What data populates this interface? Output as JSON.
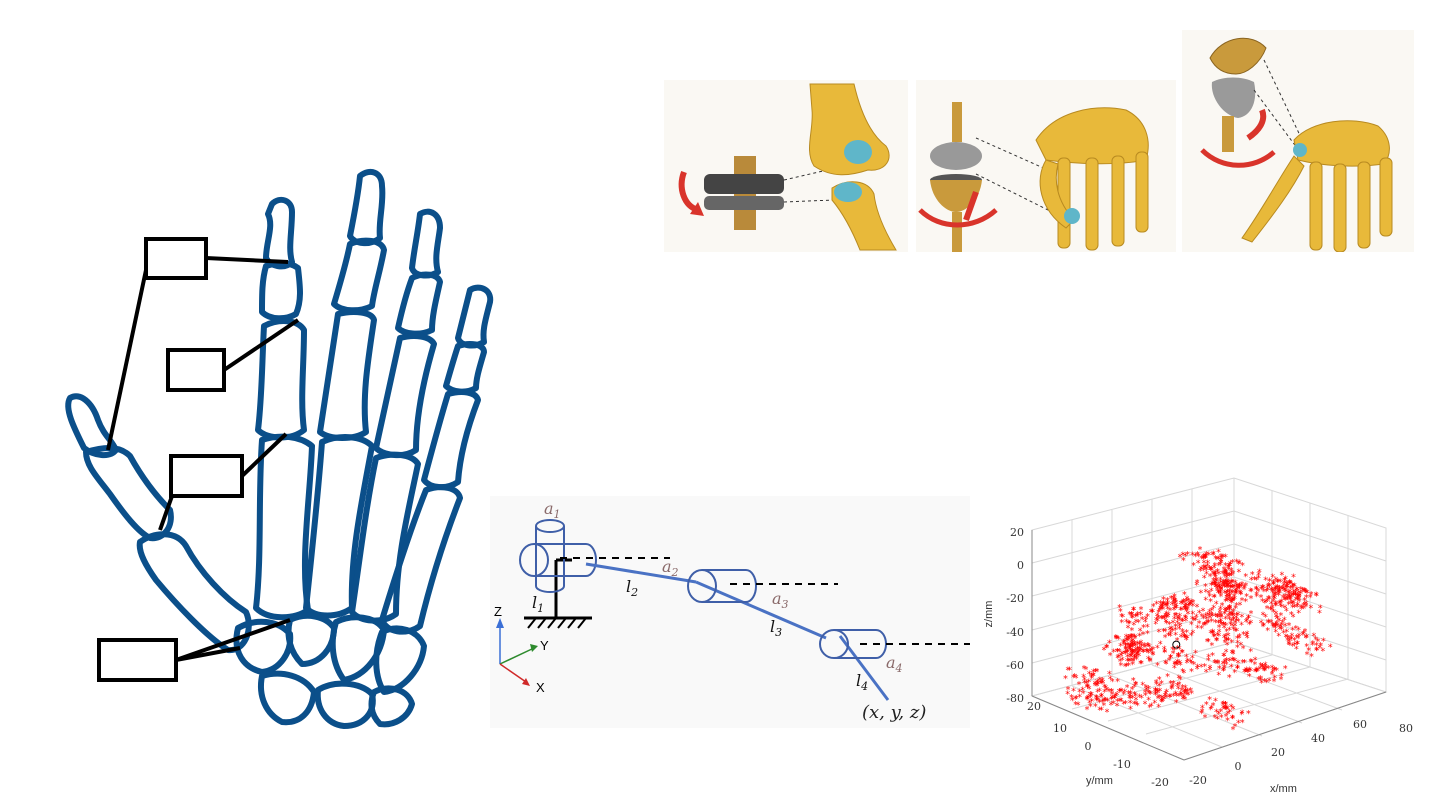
{
  "kinematics": {
    "a1": "a",
    "a1_sub": "1",
    "a2": "a",
    "a2_sub": "2",
    "a3": "a",
    "a3_sub": "3",
    "a4": "a",
    "a4_sub": "4",
    "l1": "l",
    "l1_sub": "1",
    "l2": "l",
    "l2_sub": "2",
    "l3": "l",
    "l3_sub": "3",
    "l4": "l",
    "l4_sub": "4",
    "end_point": "(x, y, z)",
    "axis_z": "Z",
    "axis_y": "Y",
    "axis_x": "X"
  },
  "plot": {
    "zlabel": "z/mm",
    "xlabel": "x/mm",
    "ylabel": "y/mm",
    "z_ticks": [
      "20",
      "0",
      "-20",
      "-40",
      "-60",
      "-80"
    ],
    "x_ticks": [
      "-20",
      "0",
      "20",
      "40",
      "60",
      "80"
    ],
    "y_ticks": [
      "20",
      "10",
      "0",
      "-10",
      "-20"
    ]
  },
  "colors": {
    "bone_outline": "#0b4f8a",
    "link_blue": "#4a72c4",
    "scatter_red": "#ff0000",
    "bone_fill": "#e8b93a",
    "joint_blue": "#5fb6c9",
    "arrow_red": "#d9342b"
  },
  "chart_data": {
    "type": "scatter",
    "title": "",
    "xlabel": "x/mm",
    "ylabel": "y/mm",
    "zlabel": "z/mm",
    "xlim": [
      -20,
      80
    ],
    "ylim": [
      -20,
      20
    ],
    "zlim": [
      -80,
      20
    ],
    "grid": true,
    "marker": "*",
    "series": [
      {
        "points_xyz": [
          [
            -5,
            5,
            -70
          ],
          [
            0,
            0,
            -65
          ],
          [
            5,
            -5,
            -60
          ],
          [
            10,
            10,
            -55
          ],
          [
            15,
            0,
            -50
          ],
          [
            20,
            -10,
            -45
          ],
          [
            25,
            5,
            -40
          ],
          [
            30,
            -5,
            -38
          ],
          [
            35,
            10,
            -35
          ],
          [
            40,
            0,
            -30
          ],
          [
            45,
            -10,
            -28
          ],
          [
            50,
            5,
            -25
          ],
          [
            55,
            -5,
            -22
          ],
          [
            60,
            0,
            -20
          ],
          [
            -10,
            10,
            -75
          ],
          [
            0,
            15,
            -72
          ],
          [
            10,
            -15,
            -66
          ],
          [
            20,
            15,
            -58
          ],
          [
            30,
            -15,
            -48
          ],
          [
            40,
            15,
            -42
          ],
          [
            50,
            -15,
            -36
          ],
          [
            60,
            10,
            -30
          ],
          [
            65,
            -5,
            -26
          ],
          [
            70,
            0,
            -24
          ],
          [
            5,
            5,
            -45
          ],
          [
            15,
            10,
            -35
          ],
          [
            25,
            -5,
            -25
          ],
          [
            35,
            0,
            -15
          ],
          [
            45,
            5,
            -10
          ],
          [
            28,
            0,
            5
          ]
        ]
      }
    ],
    "reference_marker": {
      "x": -5,
      "y": -10,
      "z": -25,
      "symbol": "o"
    }
  }
}
